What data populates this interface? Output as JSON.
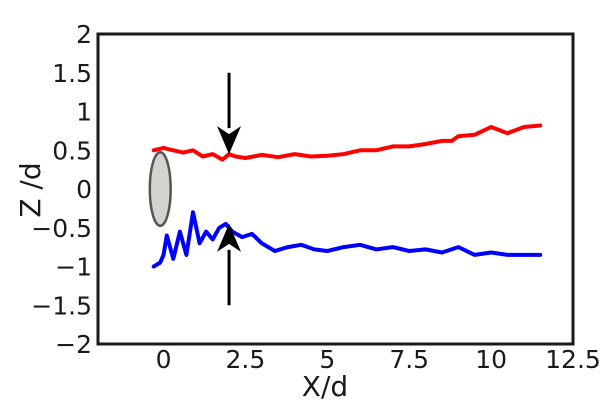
{
  "chart_data": {
    "type": "line",
    "title": "",
    "xlabel": "X/d",
    "ylabel": "Z /d",
    "xlim": [
      -2.0,
      12.5
    ],
    "ylim": [
      -2,
      2
    ],
    "x_ticks": [
      0,
      2.5,
      5,
      7.5,
      10,
      12.5
    ],
    "x_tick_labels": [
      "0",
      "2.5",
      "5",
      "7.5",
      "10",
      "12.5"
    ],
    "y_ticks": [
      2,
      1.5,
      1,
      0.5,
      0,
      -0.5,
      -1,
      -1.5,
      -2
    ],
    "y_tick_labels": [
      "2",
      "1.5",
      "1",
      "0.5",
      "0",
      "−0.5",
      "−1",
      "−1.5",
      "−2"
    ],
    "grid": false,
    "legend": "none",
    "series": [
      {
        "color": "#ff0000",
        "x": [
          -0.3,
          0.0,
          0.3,
          0.6,
          0.9,
          1.2,
          1.5,
          1.8,
          2.0,
          2.2,
          2.5,
          3.0,
          3.5,
          4.0,
          4.5,
          5.0,
          5.5,
          6.0,
          6.5,
          7.0,
          7.5,
          8.0,
          8.5,
          8.8,
          9.0,
          9.5,
          10.0,
          10.5,
          11.0,
          11.5
        ],
        "y": [
          0.5,
          0.53,
          0.5,
          0.47,
          0.5,
          0.42,
          0.45,
          0.38,
          0.45,
          0.42,
          0.4,
          0.44,
          0.41,
          0.45,
          0.42,
          0.43,
          0.45,
          0.5,
          0.5,
          0.55,
          0.55,
          0.58,
          0.62,
          0.62,
          0.68,
          0.7,
          0.8,
          0.72,
          0.8,
          0.82
        ]
      },
      {
        "color": "#0000ff",
        "x": [
          -0.3,
          -0.1,
          0.0,
          0.1,
          0.3,
          0.5,
          0.7,
          0.9,
          1.1,
          1.3,
          1.5,
          1.7,
          1.9,
          2.1,
          2.4,
          2.7,
          3.0,
          3.4,
          3.8,
          4.2,
          4.6,
          5.0,
          5.5,
          6.0,
          6.5,
          7.0,
          7.5,
          8.0,
          8.5,
          9.0,
          9.5,
          10.0,
          10.5,
          11.0,
          11.5
        ],
        "y": [
          -1.0,
          -0.95,
          -0.85,
          -0.6,
          -0.9,
          -0.55,
          -0.85,
          -0.3,
          -0.7,
          -0.55,
          -0.65,
          -0.5,
          -0.45,
          -0.55,
          -0.62,
          -0.58,
          -0.7,
          -0.8,
          -0.75,
          -0.72,
          -0.78,
          -0.8,
          -0.75,
          -0.72,
          -0.78,
          -0.75,
          -0.8,
          -0.78,
          -0.82,
          -0.75,
          -0.85,
          -0.82,
          -0.85,
          -0.85,
          -0.85
        ]
      }
    ],
    "annotations": [
      {
        "type": "arrow",
        "x": 2.0,
        "from_y": 1.5,
        "to_y": 0.45,
        "direction": "down"
      },
      {
        "type": "arrow",
        "x": 2.0,
        "from_y": -1.5,
        "to_y": -0.45,
        "direction": "up"
      },
      {
        "type": "ellipse",
        "cx": -0.1,
        "cy": 0,
        "rx": 0.55,
        "ry": 0.5,
        "fill": "#d4d4cc",
        "stroke": "#555555"
      }
    ]
  }
}
